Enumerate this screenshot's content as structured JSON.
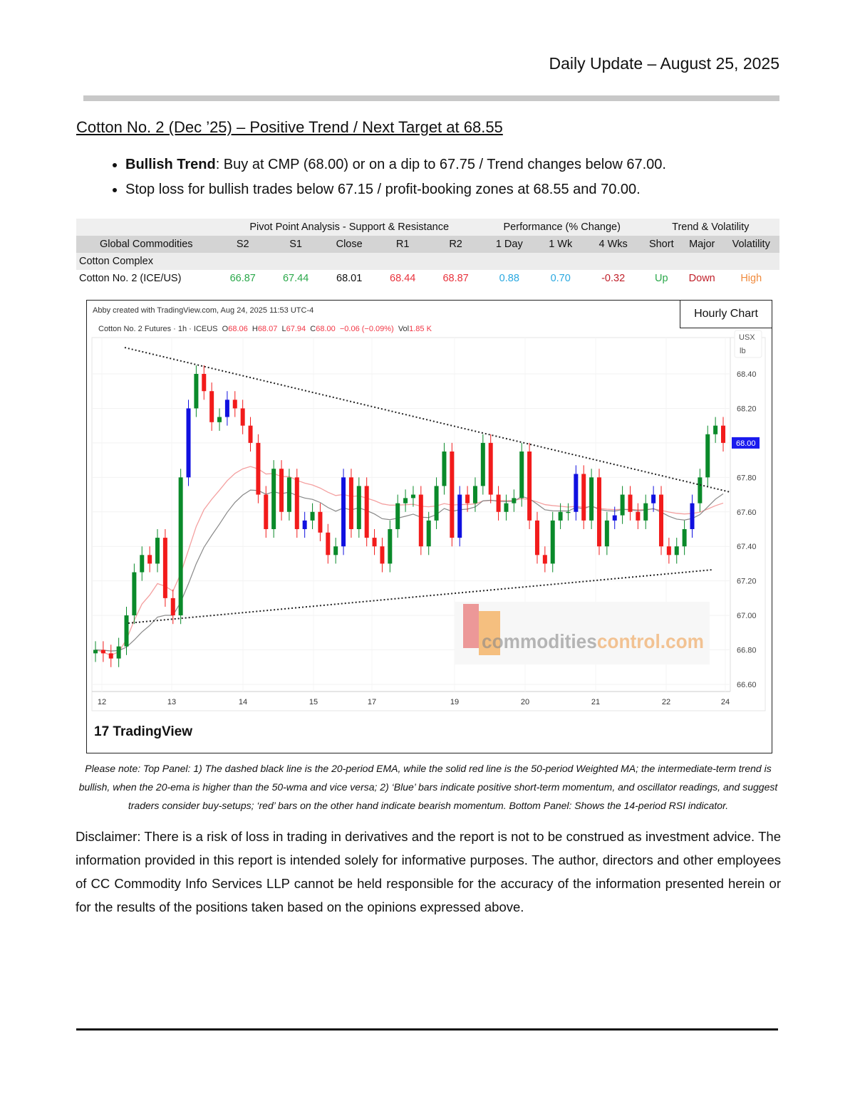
{
  "header": {
    "date_line": "Daily Update – August 25, 2025"
  },
  "title": "Cotton No. 2 (Dec   ’25) – Positive Trend / Next Target at 68.55",
  "bullets": [
    {
      "bold": "Bullish Trend",
      "text": ": Buy at CMP (68.00) or on a dip to 67.75 / Trend changes below 67.00."
    },
    {
      "bold": "",
      "text": "Stop loss for bullish trades below 67.15 / profit-booking zones at 68.55 and 70.00."
    }
  ],
  "table": {
    "groups": [
      "Pivot Point Analysis - Support & Resistance",
      "Performance (% Change)",
      "Trend & Volatility"
    ],
    "columns": [
      "Global Commodities",
      "S2",
      "S1",
      "Close",
      "R1",
      "R2",
      "1 Day",
      "1 Wk",
      "4 Wks",
      "Short",
      "Major",
      "Volatility"
    ],
    "section": "Cotton Complex",
    "row": {
      "cells": [
        "Cotton No. 2 (ICE/US)",
        "66.87",
        "67.44",
        "68.01",
        "68.44",
        "68.87",
        "0.88",
        "0.70",
        "-0.32",
        "Up",
        "Down",
        "High"
      ],
      "colors": [
        "#111",
        "#2aa84a",
        "#2aa84a",
        "#111",
        "#e8323c",
        "#e8323c",
        "#29a8e0",
        "#29a8e0",
        "#c0202a",
        "#2aa84a",
        "#c0202a",
        "#f08a3c"
      ]
    }
  },
  "chart": {
    "label": "Hourly Chart",
    "created": "Abby created with TradingView.com, Aug 24, 2025 11:53 UTC-4",
    "symbol": "Cotton No. 2 Futures · 1h · ICEUS",
    "ohlc": {
      "o": "68.06",
      "h": "68.07",
      "l": "67.94",
      "c": "68.00",
      "chg": "−0.06 (−0.09%)",
      "vol": "1.85 K"
    },
    "ohlc_labels": {
      "o": "O",
      "h": "H",
      "l": "L",
      "c": "C",
      "vol": "Vol"
    },
    "currency": "USX",
    "unit": "lb",
    "last_price": "68.00",
    "y_ticks": [
      "68.40",
      "68.20",
      "68.00",
      "67.80",
      "67.60",
      "67.40",
      "67.20",
      "67.00",
      "66.80",
      "66.60"
    ],
    "x_ticks": [
      "12",
      "13",
      "14",
      "15",
      "17",
      "19",
      "20",
      "21",
      "22",
      "24"
    ],
    "closes": [
      66.8,
      66.78,
      66.75,
      66.82,
      67.0,
      67.25,
      67.35,
      67.3,
      67.45,
      67.1,
      67.0,
      67.8,
      68.2,
      68.4,
      68.3,
      68.12,
      68.15,
      68.25,
      68.2,
      68.1,
      68.0,
      67.7,
      67.5,
      67.85,
      67.6,
      67.8,
      67.5,
      67.55,
      67.6,
      67.48,
      67.35,
      67.4,
      67.8,
      67.5,
      67.75,
      67.45,
      67.4,
      67.3,
      67.5,
      67.65,
      67.68,
      67.7,
      67.4,
      67.55,
      67.75,
      67.95,
      67.45,
      67.7,
      67.65,
      67.75,
      68.0,
      67.7,
      67.6,
      67.65,
      67.68,
      67.95,
      67.55,
      67.35,
      67.3,
      67.55,
      67.6,
      67.6,
      67.82,
      67.55,
      67.8,
      67.4,
      67.55,
      67.58,
      67.7,
      67.6,
      67.55,
      67.65,
      67.7,
      67.4,
      67.35,
      67.4,
      67.5,
      67.65,
      67.8,
      68.05,
      68.1,
      68.0
    ],
    "colors": {
      "up": "#089981",
      "bull": "#0a8a2a",
      "bear": "#f21b1b",
      "blue": "#1010e0",
      "ema": "#888888",
      "wma": "#f4a0a0",
      "price_tag": "#1a1aee"
    },
    "watermark": "commoditiescontrol.com",
    "watermark_parts": [
      "commodities",
      "control.com"
    ],
    "brand": "TradingView"
  },
  "note": "Please note: Top Panel: 1) The dashed black line is the 20-period EMA, while the solid red line is the 50-period Weighted MA; the intermediate-term trend is bullish, when the 20-ema is higher than the 50-wma and vice versa; 2)   ‘Blue’   bars indicate positive short-term momentum, and oscillator readings, and suggest traders consider buy-setups;   ‘red’   bars on the other hand indicate bearish momentum. Bottom Panel: Shows the 14-period RSI indicator.",
  "disclaimer": "Disclaimer: There is a risk of loss in trading in derivatives and the report is not to be construed as investment advice. The information provided in this report is intended solely for informative purposes. The author, directors and other employees of CC Commodity Info Services LLP cannot be held responsible for the accuracy of the information presented herein or for the results of the positions taken based on the opinions expressed above."
}
